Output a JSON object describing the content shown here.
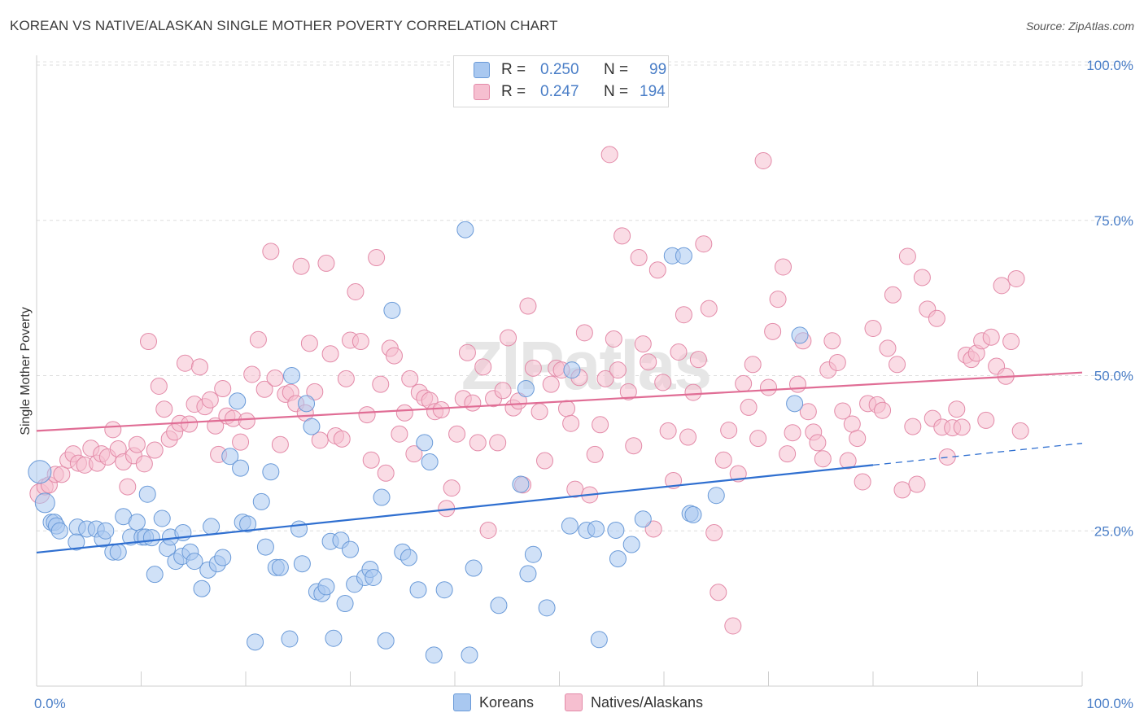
{
  "header": {
    "title": "KOREAN VS NATIVE/ALASKAN SINGLE MOTHER POVERTY CORRELATION CHART",
    "source": "Source: ZipAtlas.com"
  },
  "watermark": "ZIPatlas",
  "legend_top": {
    "rows": [
      {
        "r_label": "R =",
        "r_value": "0.250",
        "n_label": "N =",
        "n_value": "99",
        "color": "#a9c8f0",
        "border": "#6a9ad8"
      },
      {
        "r_label": "R =",
        "r_value": "0.247",
        "n_label": "N =",
        "n_value": "194",
        "color": "#f6bfd0",
        "border": "#e38aa8"
      }
    ]
  },
  "legend_bottom": {
    "items": [
      {
        "label": "Koreans",
        "color": "#a9c8f0",
        "border": "#6a9ad8"
      },
      {
        "label": "Natives/Alaskans",
        "color": "#f6bfd0",
        "border": "#e38aa8"
      }
    ]
  },
  "chart_data": {
    "type": "scatter",
    "title": "KOREAN VS NATIVE/ALASKAN SINGLE MOTHER POVERTY CORRELATION CHART",
    "xlabel": "",
    "ylabel": "Single Mother Poverty",
    "xlim": [
      0,
      100
    ],
    "ylim": [
      0,
      100
    ],
    "x_tick_labels": [
      "0.0%",
      "100.0%"
    ],
    "y_ticks": [
      {
        "value": 100,
        "label": "100.0%"
      },
      {
        "value": 75,
        "label": "75.0%"
      },
      {
        "value": 50,
        "label": "50.0%"
      },
      {
        "value": 25,
        "label": "25.0%"
      }
    ],
    "grid": true,
    "legend_position": "top-center",
    "series": [
      {
        "name": "Koreans",
        "color": "#6a9ad8",
        "fill": "#a9c8f0",
        "r": 0.25,
        "n": 99,
        "trend": {
          "x0": 0,
          "y0": 21.5,
          "x1": 80,
          "y1": 35.6,
          "dash_x1": 100,
          "dash_y1": 39.1
        },
        "points": [
          [
            0.3,
            34.5
          ],
          [
            0.8,
            29.5
          ],
          [
            1.4,
            26.4
          ],
          [
            1.7,
            26.4
          ],
          [
            1.9,
            25.8
          ],
          [
            2.2,
            25
          ],
          [
            3.9,
            25.6
          ],
          [
            3.8,
            23.2
          ],
          [
            4.8,
            25.3
          ],
          [
            5.7,
            25.3
          ],
          [
            6.3,
            23.7
          ],
          [
            6.6,
            25
          ],
          [
            7.3,
            21.6
          ],
          [
            7.8,
            21.6
          ],
          [
            8.3,
            27.3
          ],
          [
            9,
            24
          ],
          [
            9.6,
            26.4
          ],
          [
            10.1,
            24
          ],
          [
            10.4,
            24
          ],
          [
            10.6,
            30.9
          ],
          [
            11,
            23.9
          ],
          [
            11.3,
            18
          ],
          [
            12,
            27
          ],
          [
            12.5,
            22.2
          ],
          [
            12.8,
            24
          ],
          [
            13.3,
            20.1
          ],
          [
            13.9,
            20.9
          ],
          [
            14,
            24.7
          ],
          [
            14.7,
            21.6
          ],
          [
            15.1,
            20.1
          ],
          [
            15.8,
            15.7
          ],
          [
            16.4,
            18.7
          ],
          [
            16.7,
            25.7
          ],
          [
            17.3,
            19.7
          ],
          [
            17.8,
            20.7
          ],
          [
            18.5,
            37
          ],
          [
            19.2,
            45.9
          ],
          [
            19.5,
            35.1
          ],
          [
            19.7,
            26.4
          ],
          [
            20.2,
            26.1
          ],
          [
            20.9,
            7.1
          ],
          [
            21.5,
            29.7
          ],
          [
            21.9,
            22.4
          ],
          [
            22.4,
            34.5
          ],
          [
            22.9,
            19.1
          ],
          [
            23.3,
            19.1
          ],
          [
            24.2,
            7.6
          ],
          [
            24.4,
            50
          ],
          [
            25.1,
            25.3
          ],
          [
            25.4,
            19.7
          ],
          [
            25.8,
            45.5
          ],
          [
            26.3,
            41.8
          ],
          [
            26.8,
            15.2
          ],
          [
            27.3,
            14.9
          ],
          [
            27.7,
            16
          ],
          [
            28.1,
            23.3
          ],
          [
            28.4,
            7.7
          ],
          [
            29.1,
            23.5
          ],
          [
            29.5,
            13.3
          ],
          [
            30,
            22
          ],
          [
            30.4,
            16.4
          ],
          [
            31.4,
            17.5
          ],
          [
            31.9,
            18.8
          ],
          [
            32.2,
            17.5
          ],
          [
            33,
            30.4
          ],
          [
            33.4,
            7.3
          ],
          [
            34,
            60.5
          ],
          [
            35,
            21.6
          ],
          [
            35.6,
            20.7
          ],
          [
            36.5,
            15.5
          ],
          [
            37.1,
            39.2
          ],
          [
            37.6,
            36.1
          ],
          [
            38,
            5
          ],
          [
            39,
            15.5
          ],
          [
            41,
            73.5
          ],
          [
            41.4,
            5
          ],
          [
            41.8,
            19
          ],
          [
            44.2,
            13
          ],
          [
            46.3,
            32.5
          ],
          [
            46.8,
            47.9
          ],
          [
            47,
            18.1
          ],
          [
            47.5,
            21.2
          ],
          [
            48.8,
            12.6
          ],
          [
            51,
            25.8
          ],
          [
            51.2,
            50.9
          ],
          [
            52.6,
            25.1
          ],
          [
            53.5,
            25.3
          ],
          [
            53.8,
            7.5
          ],
          [
            55.4,
            25.1
          ],
          [
            55.6,
            20.5
          ],
          [
            56.9,
            22.8
          ],
          [
            58,
            26.9
          ],
          [
            60.8,
            69.3
          ],
          [
            61.9,
            69.3
          ],
          [
            62.5,
            27.8
          ],
          [
            62.8,
            27.6
          ],
          [
            65,
            30.7
          ],
          [
            72.5,
            45.5
          ],
          [
            73,
            56.5
          ]
        ]
      },
      {
        "name": "Natives/Alaskans",
        "color": "#e38aa8",
        "fill": "#f6bfd0",
        "r": 0.247,
        "n": 194,
        "trend": {
          "x0": 0,
          "y0": 41.1,
          "x1": 100,
          "y1": 50.5
        },
        "points": [
          [
            0.3,
            31
          ],
          [
            0.8,
            32.1
          ],
          [
            1.2,
            32.4
          ],
          [
            1.8,
            34.1
          ],
          [
            2.4,
            34.1
          ],
          [
            3,
            36.4
          ],
          [
            3.5,
            37.4
          ],
          [
            4,
            35.9
          ],
          [
            4.6,
            35.6
          ],
          [
            5.2,
            38.3
          ],
          [
            5.8,
            35.9
          ],
          [
            6.2,
            37.4
          ],
          [
            6.8,
            36.9
          ],
          [
            7.3,
            41.3
          ],
          [
            7.8,
            38.2
          ],
          [
            8.3,
            36.1
          ],
          [
            8.7,
            32.1
          ],
          [
            9.3,
            37.1
          ],
          [
            9.6,
            38.9
          ],
          [
            10.3,
            35.8
          ],
          [
            10.7,
            55.5
          ],
          [
            11.3,
            38
          ],
          [
            11.7,
            48.3
          ],
          [
            12.2,
            44.6
          ],
          [
            12.7,
            39.8
          ],
          [
            13.2,
            40.9
          ],
          [
            13.7,
            42.3
          ],
          [
            14.2,
            52
          ],
          [
            14.6,
            42.2
          ],
          [
            15.1,
            45.4
          ],
          [
            15.6,
            51.4
          ],
          [
            16.1,
            45
          ],
          [
            16.6,
            46.1
          ],
          [
            17.1,
            41.9
          ],
          [
            17.4,
            37.3
          ],
          [
            17.8,
            47.9
          ],
          [
            18.2,
            43.5
          ],
          [
            18.8,
            43.1
          ],
          [
            19.5,
            39.3
          ],
          [
            20.1,
            42.7
          ],
          [
            20.6,
            50.2
          ],
          [
            21.2,
            55.8
          ],
          [
            21.8,
            47.8
          ],
          [
            22.4,
            70
          ],
          [
            22.8,
            49.6
          ],
          [
            23.3,
            38.9
          ],
          [
            23.8,
            47
          ],
          [
            24.3,
            47.3
          ],
          [
            24.8,
            45.5
          ],
          [
            25.3,
            67.6
          ],
          [
            25.7,
            44
          ],
          [
            26.1,
            55.2
          ],
          [
            26.6,
            47.4
          ],
          [
            27.1,
            39.6
          ],
          [
            27.7,
            68.1
          ],
          [
            28.1,
            53.5
          ],
          [
            28.6,
            40.3
          ],
          [
            29.2,
            39.8
          ],
          [
            29.6,
            49.5
          ],
          [
            30,
            55.7
          ],
          [
            30.5,
            63.5
          ],
          [
            31,
            55.5
          ],
          [
            31.6,
            43.7
          ],
          [
            32,
            36.4
          ],
          [
            32.5,
            69
          ],
          [
            32.9,
            48.6
          ],
          [
            33.4,
            34.3
          ],
          [
            33.8,
            54.4
          ],
          [
            34.2,
            53.2
          ],
          [
            34.7,
            40.6
          ],
          [
            35.2,
            44
          ],
          [
            35.7,
            49.5
          ],
          [
            36.1,
            37.4
          ],
          [
            36.6,
            47.3
          ],
          [
            37.1,
            46.4
          ],
          [
            37.6,
            46
          ],
          [
            38.1,
            44.2
          ],
          [
            38.7,
            44.5
          ],
          [
            39.2,
            28.6
          ],
          [
            39.7,
            31.9
          ],
          [
            40.2,
            40.6
          ],
          [
            40.8,
            46.3
          ],
          [
            41.2,
            53.7
          ],
          [
            41.7,
            45.6
          ],
          [
            42.2,
            39.2
          ],
          [
            42.7,
            51.4
          ],
          [
            43.2,
            25.1
          ],
          [
            43.7,
            46.3
          ],
          [
            44.1,
            39.2
          ],
          [
            44.6,
            47.6
          ],
          [
            45.1,
            56.1
          ],
          [
            45.6,
            44.8
          ],
          [
            46.1,
            45.9
          ],
          [
            46.5,
            32.4
          ],
          [
            47,
            61.2
          ],
          [
            47.5,
            51.2
          ],
          [
            48.1,
            44.2
          ],
          [
            48.6,
            36.3
          ],
          [
            49.2,
            48.6
          ],
          [
            49.7,
            51.2
          ],
          [
            50.2,
            50.9
          ],
          [
            50.7,
            44.7
          ],
          [
            51.1,
            42.3
          ],
          [
            51.5,
            31.7
          ],
          [
            51.9,
            49.7
          ],
          [
            52.4,
            56.9
          ],
          [
            52.9,
            30.8
          ],
          [
            53.4,
            37.3
          ],
          [
            53.9,
            42.1
          ],
          [
            54.4,
            49.5
          ],
          [
            54.8,
            85.6
          ],
          [
            55.2,
            55.9
          ],
          [
            55.6,
            50.9
          ],
          [
            56,
            72.5
          ],
          [
            56.6,
            47.4
          ],
          [
            57.1,
            38.7
          ],
          [
            57.6,
            69
          ],
          [
            58,
            55.1
          ],
          [
            58.5,
            52.2
          ],
          [
            59,
            25.3
          ],
          [
            59.4,
            67
          ],
          [
            59.9,
            48.9
          ],
          [
            60.4,
            41.1
          ],
          [
            60.9,
            33.1
          ],
          [
            61.4,
            53.8
          ],
          [
            61.9,
            59.8
          ],
          [
            62.3,
            40.1
          ],
          [
            62.8,
            47.3
          ],
          [
            63.3,
            52.6
          ],
          [
            63.8,
            71.2
          ],
          [
            64.3,
            60.8
          ],
          [
            64.8,
            24.7
          ],
          [
            65.2,
            15.1
          ],
          [
            65.7,
            36.4
          ],
          [
            66.2,
            41.2
          ],
          [
            66.6,
            9.7
          ],
          [
            67.1,
            34.2
          ],
          [
            67.6,
            48.7
          ],
          [
            68.1,
            44.9
          ],
          [
            68.5,
            51.8
          ],
          [
            69,
            39.9
          ],
          [
            69.5,
            84.6
          ],
          [
            70,
            48.1
          ],
          [
            70.4,
            57.1
          ],
          [
            70.9,
            62.3
          ],
          [
            71.4,
            67.5
          ],
          [
            71.8,
            37.4
          ],
          [
            72.3,
            40.8
          ],
          [
            72.8,
            48.6
          ],
          [
            73.3,
            55.6
          ],
          [
            73.8,
            44.2
          ],
          [
            74.3,
            40.9
          ],
          [
            74.7,
            39.2
          ],
          [
            75.2,
            36.6
          ],
          [
            75.7,
            50.9
          ],
          [
            76.1,
            55.6
          ],
          [
            76.6,
            52.1
          ],
          [
            77.1,
            44.3
          ],
          [
            77.6,
            36.3
          ],
          [
            78,
            42.2
          ],
          [
            78.5,
            39.9
          ],
          [
            79,
            32.9
          ],
          [
            79.5,
            45.5
          ],
          [
            80,
            57.6
          ],
          [
            80.4,
            45.3
          ],
          [
            80.9,
            44.4
          ],
          [
            81.4,
            54.4
          ],
          [
            81.9,
            63
          ],
          [
            82.3,
            51.8
          ],
          [
            82.8,
            31.6
          ],
          [
            83.3,
            69.2
          ],
          [
            83.8,
            41.8
          ],
          [
            84.2,
            32.5
          ],
          [
            84.7,
            65.8
          ],
          [
            85.2,
            60.7
          ],
          [
            85.7,
            43.1
          ],
          [
            86.1,
            59.2
          ],
          [
            86.6,
            41.7
          ],
          [
            87.1,
            36.9
          ],
          [
            87.6,
            41.6
          ],
          [
            88,
            44.6
          ],
          [
            88.5,
            41.7
          ],
          [
            88.9,
            53.3
          ],
          [
            89.4,
            52.6
          ],
          [
            89.9,
            53.6
          ],
          [
            90.4,
            55.6
          ],
          [
            90.8,
            42.8
          ],
          [
            91.3,
            56.2
          ],
          [
            91.8,
            51.5
          ],
          [
            92.3,
            64.5
          ],
          [
            92.7,
            49.9
          ],
          [
            93.2,
            55.5
          ],
          [
            93.7,
            65.6
          ],
          [
            94.1,
            41.1
          ]
        ]
      }
    ]
  }
}
